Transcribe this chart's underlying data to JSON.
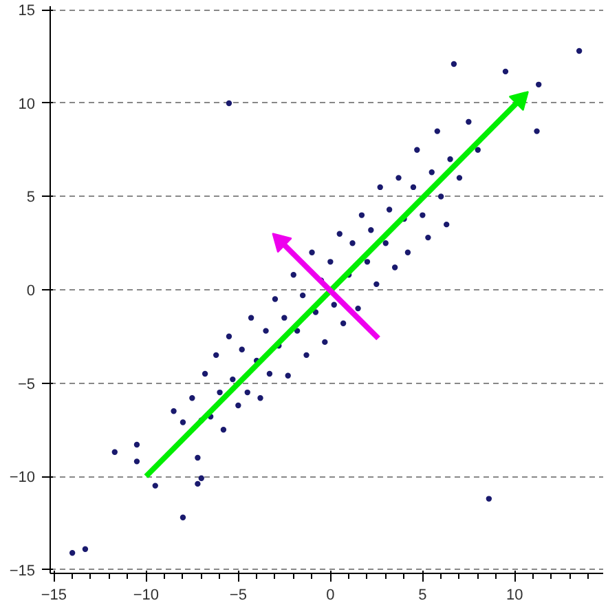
{
  "chart_data": {
    "type": "scatter",
    "xlim": [
      -15.2,
      14.8
    ],
    "ylim": [
      -15.2,
      15.2
    ],
    "xticks": [
      -15,
      -10,
      -5,
      0,
      5,
      10
    ],
    "yticks": [
      -15,
      -10,
      -5,
      0,
      5,
      10,
      15
    ],
    "grid": "y",
    "marker": "circle",
    "series": [
      {
        "color": "#1a1a6e",
        "x": [
          -14,
          -13.3,
          -5.5,
          -8,
          -11.7,
          -10.5,
          -10.5,
          -9.5,
          -7,
          -7.2,
          6.7,
          9.5,
          11.3,
          11.2,
          13.5,
          8.6,
          -8.5,
          -8,
          -7.5,
          -7.2,
          -7,
          -6.8,
          -6.5,
          -6.2,
          -6,
          -5.8,
          -5.5,
          -5.3,
          -5,
          -4.8,
          -4.5,
          -4.3,
          -4,
          -3.8,
          -3.5,
          -3.3,
          -3,
          -2.8,
          -2.5,
          -2.3,
          -2,
          -1.8,
          -1.5,
          -1.3,
          -1,
          -0.8,
          -0.5,
          -0.3,
          0,
          0.2,
          0.5,
          0.7,
          1,
          1.2,
          1.5,
          1.7,
          2,
          2.2,
          2.5,
          2.7,
          3,
          3.2,
          3.5,
          3.7,
          4,
          4.2,
          4.5,
          4.7,
          5,
          5.3,
          5.5,
          5.8,
          6,
          6.3,
          6.5,
          7,
          7.5,
          8
        ],
        "values": [
          -14.1,
          -13.9,
          10,
          -12.2,
          -8.7,
          -9.2,
          -8.3,
          -10.5,
          -10.1,
          -10.4,
          12.1,
          11.7,
          11,
          8.5,
          12.8,
          -11.2,
          -6.5,
          -7.1,
          -5.8,
          -9,
          -7,
          -4.5,
          -6.8,
          -3.5,
          -5.5,
          -7.5,
          -2.5,
          -4.8,
          -6.2,
          -3.2,
          -5.5,
          -1.5,
          -3.8,
          -5.8,
          -2.2,
          -4.5,
          -0.5,
          -3,
          -1.5,
          -4.6,
          0.8,
          -2.2,
          -0.3,
          -3.5,
          2,
          -1.2,
          0.5,
          -2.8,
          1.5,
          -0.8,
          3,
          -1.8,
          0.8,
          2.5,
          -1,
          4,
          1.5,
          3.2,
          0.3,
          5.5,
          2.5,
          4.3,
          1.2,
          6,
          3.8,
          2,
          5.5,
          7.5,
          4,
          2.8,
          6.3,
          8.5,
          5,
          3.5,
          7,
          6,
          9,
          7.5
        ]
      },
      {
        "type": "line",
        "marker": "triangle",
        "color": "#00ee00",
        "x": [
          -10,
          10.3
        ],
        "values": [
          -10,
          10.2
        ]
      },
      {
        "type": "line",
        "marker": "triangle",
        "color": "#ee00ee",
        "x": [
          2.6,
          -2.7
        ],
        "values": [
          -2.6,
          2.6
        ]
      }
    ]
  }
}
